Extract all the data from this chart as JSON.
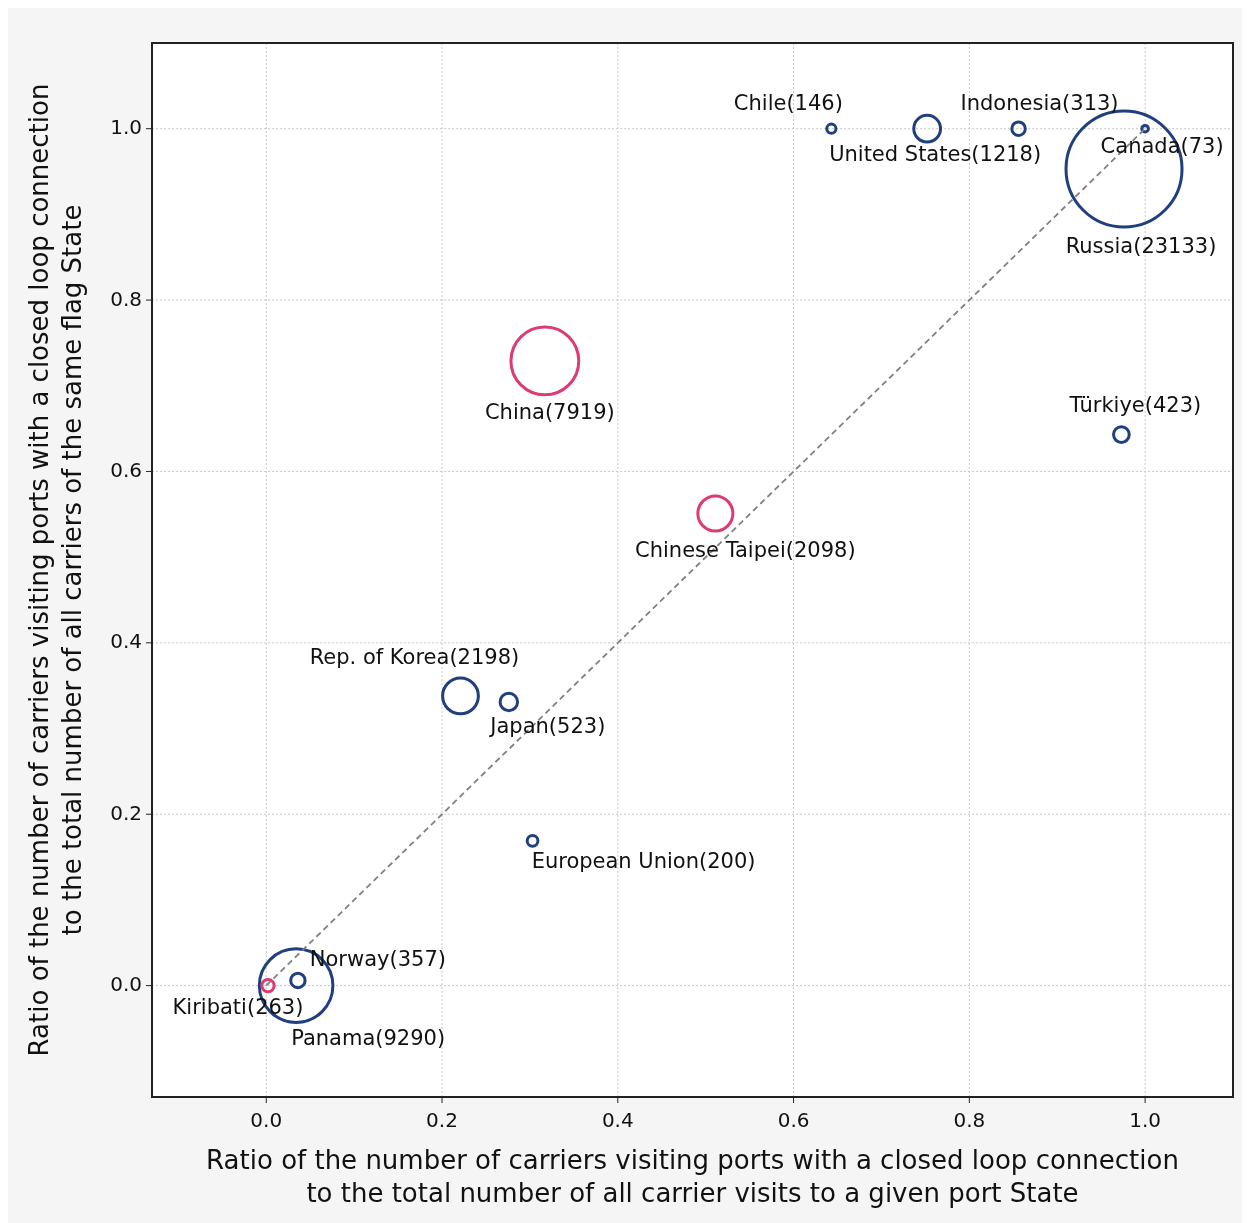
{
  "chart_data": {
    "type": "bubble",
    "xlabel": "Ratio of the number of carriers visiting ports with a closed loop connection\nto the total number of all carrier visits to a given port State",
    "ylabel": "Ratio of the number of carriers visiting ports with a closed loop connection\nto the total number of all carriers of the same flag State",
    "xlim": [
      -0.13,
      1.1
    ],
    "ylim": [
      -0.13,
      1.1
    ],
    "xticks": [
      {
        "value": 0,
        "label": "0.0"
      },
      {
        "value": 0.2,
        "label": "0.2"
      },
      {
        "value": 0.4,
        "label": "0.4"
      },
      {
        "value": 0.6,
        "label": "0.6"
      },
      {
        "value": 0.8,
        "label": "0.8"
      },
      {
        "value": 1,
        "label": "1.0"
      }
    ],
    "yticks": [
      {
        "value": 0,
        "label": "0.0"
      },
      {
        "value": 0.2,
        "label": "0.2"
      },
      {
        "value": 0.4,
        "label": "0.4"
      },
      {
        "value": 0.6,
        "label": "0.6"
      },
      {
        "value": 0.8,
        "label": "0.8"
      },
      {
        "value": 1,
        "label": "1.0"
      }
    ],
    "grid": true,
    "series": [
      {
        "type": "bubble",
        "x": [
          0.643,
          0.752,
          0.856,
          1.0,
          0.976,
          0.317,
          0.973,
          0.511,
          0.221,
          0.276,
          0.303,
          0.034,
          0.036,
          0.002
        ],
        "values": [
          1.0,
          1.0,
          1.0,
          1.0,
          0.953,
          0.729,
          0.643,
          0.551,
          0.338,
          0.331,
          0.169,
          0.0,
          0.006,
          0.0
        ],
        "sizes": [
          0.0063,
          0.053,
          0.0135,
          0.0032,
          1,
          0.342,
          0.0183,
          0.091,
          0.095,
          0.0226,
          0.0086,
          0.402,
          0.0154,
          0.0114
        ],
        "marker": "circle",
        "value_labels": [
          "Chile(146)",
          "United States(1218)",
          "Indonesia(313)",
          "Canada(73)",
          "Russia(23133)",
          "China(7919)",
          "Türkiye(423)",
          "Chinese Taipei(2098)",
          "Rep. of Korea(2198)",
          "Japan(523)",
          "European Union(200)",
          "Panama(9290)",
          "Norway(357)",
          "Kiribati(263)"
        ],
        "colors": [
          "#1f3f7f",
          "#1f3f7f",
          "#1f3f7f",
          "#1f3f7f",
          "#1f3f7f",
          "#dc3c6e",
          "#1f3f7f",
          "#dc3c6e",
          "#1f3f7f",
          "#1f3f7f",
          "#1f3f7f",
          "#1f3f7f",
          "#1f3f7f",
          "#dc3c6e"
        ]
      },
      {
        "type": "line",
        "x": [
          0,
          1
        ],
        "values": [
          0,
          1
        ],
        "color": "#808080",
        "line_style": "dashed",
        "marker": "none"
      }
    ]
  }
}
